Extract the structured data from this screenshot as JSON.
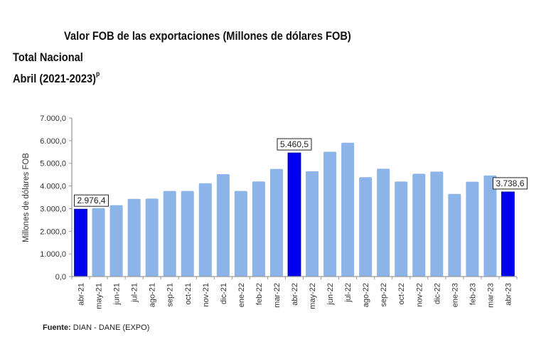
{
  "chart_data": {
    "type": "bar",
    "title": "Valor FOB de las exportaciones (Millones de dólares FOB)",
    "subtitle_line1": "Total Nacional",
    "subtitle_line2": "Abril (2021-2023)",
    "subtitle_sup": "p",
    "xlabel": "",
    "ylabel": "Millones de dólares FOB",
    "ylim": [
      0,
      7000
    ],
    "yticks": [
      0,
      1000,
      2000,
      3000,
      4000,
      5000,
      6000,
      7000
    ],
    "ytick_labels": [
      "0,0",
      "1.000,0",
      "2.000,0",
      "3.000,0",
      "4.000,0",
      "5.000,0",
      "6.000,0",
      "7.000,0"
    ],
    "grid": false,
    "categories": [
      "abr-21",
      "may-21",
      "jun-21",
      "jul-21",
      "ago-21",
      "sep-21",
      "oct-21",
      "nov-21",
      "dic-21",
      "ene-22",
      "feb-22",
      "mar-22",
      "abr-22",
      "may-22",
      "jun-22",
      "jul-22",
      "ago-22",
      "sep-22",
      "oct-22",
      "nov-22",
      "dic-22",
      "ene-23",
      "feb-23",
      "mar-23",
      "abr-23"
    ],
    "values": [
      2976.4,
      3020,
      3150,
      3430,
      3440,
      3780,
      3780,
      4120,
      4520,
      3780,
      4200,
      4750,
      5460.5,
      4645,
      5510,
      5910,
      4385,
      4760,
      4195,
      4540,
      4635,
      3650,
      4185,
      4460,
      3738.6
    ],
    "highlighted": [
      "abr-21",
      "abr-22",
      "abr-23"
    ],
    "data_labels": [
      {
        "category": "abr-21",
        "text": "2.976,4"
      },
      {
        "category": "abr-22",
        "text": "5.460,5"
      },
      {
        "category": "abr-23",
        "text": "3.738,6"
      }
    ],
    "colors": {
      "bar": "#8db4e8",
      "highlight": "#0000ee"
    }
  },
  "footer": {
    "source_label": "Fuente:",
    "source_text": " DIAN  - DANE (EXPO)"
  }
}
